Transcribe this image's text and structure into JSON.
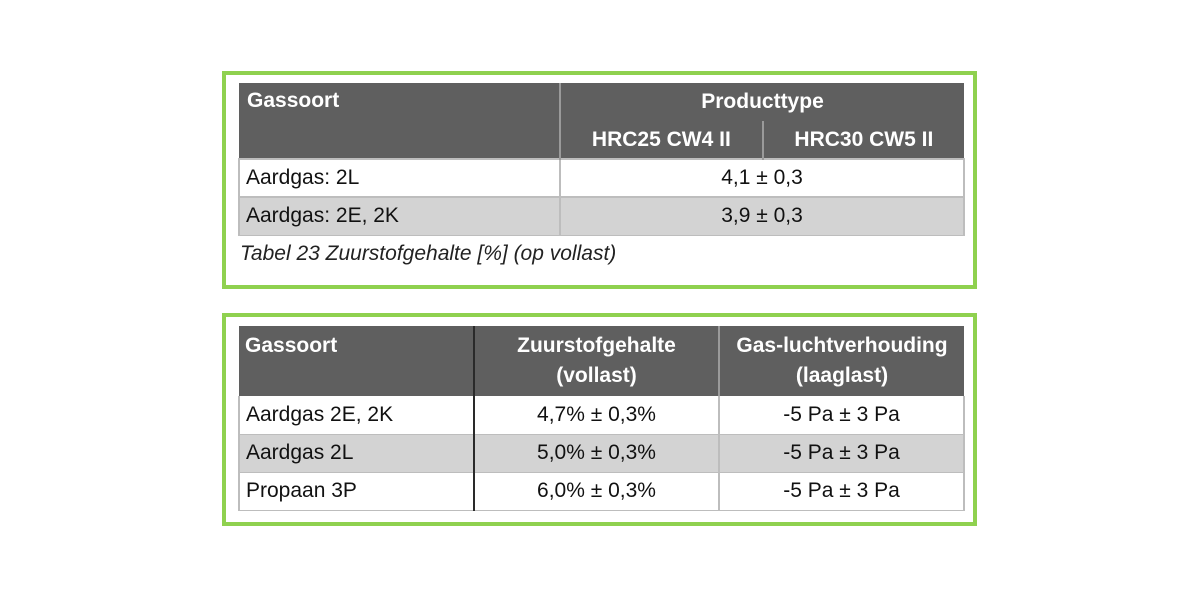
{
  "table1": {
    "header": {
      "gas_label": "Gassoort",
      "product_label": "Producttype",
      "subcolumns": [
        "HRC25 CW4 II",
        "HRC30 CW5 II"
      ]
    },
    "rows": [
      {
        "gas": "Aardgas: 2L",
        "value": "4,1 ± 0,3"
      },
      {
        "gas": "Aardgas: 2E, 2K",
        "value": "3,9 ± 0,3"
      }
    ],
    "caption": "Tabel 23  Zuurstofgehalte [%] (op vollast)"
  },
  "table2": {
    "headers": [
      "Gassoort",
      "Zuurstofgehalte",
      "(vollast)",
      "Gas-luchtverhouding",
      "(laaglast)"
    ],
    "rows": [
      {
        "gas": "Aardgas 2E, 2K",
        "oxygen": "4,7% ± 0,3%",
        "ratio": "-5 Pa ± 3 Pa"
      },
      {
        "gas": "Aardgas 2L",
        "oxygen": "5,0% ± 0,3%",
        "ratio": "-5 Pa ± 3 Pa"
      },
      {
        "gas": "Propaan 3P",
        "oxygen": "6,0% ± 0,3%",
        "ratio": "-5 Pa ± 3 Pa"
      }
    ]
  },
  "colors": {
    "panel_border": "#8fd14f",
    "header_bg": "#5f5f5f",
    "stripe_bg": "#d3d3d3"
  }
}
